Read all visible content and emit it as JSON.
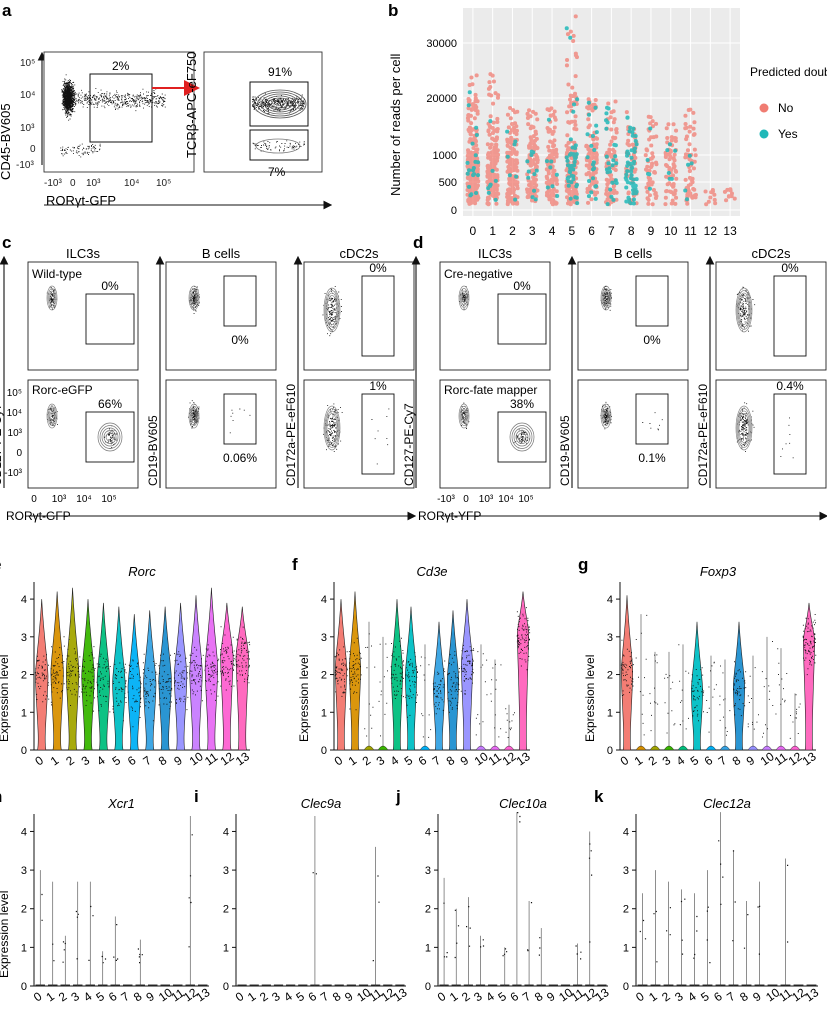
{
  "panels": {
    "a": {
      "letter": "a",
      "left_plot": {
        "xlabel": "RORγt-GFP",
        "ylabel": "CD45-BV605",
        "yticks": [
          "10^5",
          "10^4",
          "10^3",
          "0",
          "-10^3"
        ],
        "xticks": [
          "-10^3",
          "0",
          "10^3",
          "10^4",
          "10^5"
        ],
        "gate_pct": "2%"
      },
      "right_plot": {
        "ylabel": "TCRβ-APC-eF750",
        "gate_top_pct": "91%",
        "gate_bottom_pct": "7%"
      }
    },
    "b": {
      "letter": "b",
      "ylabel": "Number of reads per cell",
      "legend_title": "Predicted doublet",
      "legend_no": "No",
      "legend_yes": "Yes",
      "color_no": "#f07c72",
      "color_yes": "#20b8b8"
    },
    "c": {
      "letter": "c",
      "col_titles": [
        "ILC3s",
        "B cells",
        "cDC2s"
      ],
      "row_labels": [
        "Wild-type",
        "Rorc-eGFP"
      ],
      "ylabels": [
        "CD127-PE-Cy7",
        "CD19-BV605",
        "CD172a-PE-eF610"
      ],
      "xlabel": "RORγt-GFP",
      "yticks": [
        "10^5",
        "10^4",
        "10^3",
        "0",
        "-10^3"
      ],
      "xticks": [
        "0",
        "10^3",
        "10^4",
        "10^5"
      ],
      "pcts_top": [
        "0%",
        "0%",
        "0%"
      ],
      "pcts_bottom": [
        "66%",
        "0.06%",
        "1%"
      ]
    },
    "d": {
      "letter": "d",
      "col_titles": [
        "ILC3s",
        "B cells",
        "cDC2s"
      ],
      "row_labels": [
        "Cre-negative",
        "Rorc-fate mapper"
      ],
      "ylabels": [
        "CD127-PE-Cy7",
        "CD19-BV605",
        "CD172a-PE-eF610"
      ],
      "xlabel": "RORγt-YFP",
      "xticks": [
        "-10^3",
        "0",
        "10^3",
        "10^4",
        "10^5"
      ],
      "pcts_top": [
        "0%",
        "0%",
        "0%"
      ],
      "pcts_bottom": [
        "38%",
        "0.1%",
        "0.4%"
      ]
    },
    "efg": [
      {
        "letter": "e",
        "gene": "Rorc"
      },
      {
        "letter": "f",
        "gene": "Cd3e"
      },
      {
        "letter": "g",
        "gene": "Foxp3"
      }
    ],
    "hijk": [
      {
        "letter": "h",
        "gene": "Xcr1"
      },
      {
        "letter": "i",
        "gene": "Clec9a"
      },
      {
        "letter": "j",
        "gene": "Clec10a"
      },
      {
        "letter": "k",
        "gene": "Clec12a"
      }
    ],
    "violin_ylabel": "Expression level",
    "cluster_colors": [
      "#f2766d",
      "#d89000",
      "#a3a500",
      "#39b600",
      "#00bf7d",
      "#00bfc4",
      "#00b0f6",
      "#35a2e3",
      "#1f8fd0",
      "#9590ff",
      "#c77cff",
      "#e76bf3",
      "#fd61d1",
      "#ff62bc"
    ]
  },
  "chart_data": [
    {
      "type": "scatter",
      "panel": "b",
      "ylabel": "Number of reads per cell",
      "categories": [
        "0",
        "1",
        "2",
        "3",
        "4",
        "5",
        "6",
        "7",
        "8",
        "9",
        "10",
        "11",
        "12",
        "13"
      ],
      "ytick_labels": [
        "0",
        "500",
        "1000",
        "20000",
        "30000"
      ],
      "legend_title": "Predicted doublet",
      "series": [
        {
          "name": "No",
          "max_reads": [
            25000,
            25500,
            17000,
            16000,
            18000,
            35000,
            20000,
            19000,
            16000,
            14000,
            15000,
            21000,
            400,
            380
          ]
        },
        {
          "name": "Yes",
          "max_reads": [
            14000,
            15000,
            14000,
            16000,
            16000,
            30000,
            19000,
            18500,
            20500,
            9000,
            12000,
            13000,
            0,
            0
          ]
        }
      ]
    },
    {
      "type": "violin",
      "panel": "e",
      "title": "Rorc",
      "ylabel": "Expression level",
      "categories": [
        "0",
        "1",
        "2",
        "3",
        "4",
        "5",
        "6",
        "7",
        "8",
        "9",
        "10",
        "11",
        "12",
        "13"
      ],
      "ylim": [
        0,
        4.4
      ],
      "median": [
        1.9,
        2.0,
        2.0,
        1.9,
        1.8,
        1.7,
        1.6,
        1.7,
        1.8,
        1.9,
        2.0,
        2.1,
        2.4,
        2.4
      ],
      "max": [
        4.0,
        4.2,
        4.3,
        4.0,
        3.9,
        3.8,
        3.6,
        3.7,
        3.8,
        3.9,
        4.1,
        4.3,
        3.9,
        3.8
      ]
    },
    {
      "type": "violin",
      "panel": "f",
      "title": "Cd3e",
      "ylabel": "Expression level",
      "categories": [
        "0",
        "1",
        "2",
        "3",
        "4",
        "5",
        "6",
        "7",
        "8",
        "9",
        "10",
        "11",
        "12",
        "13"
      ],
      "ylim": [
        0,
        4.4
      ],
      "median": [
        2.1,
        2.1,
        0,
        0,
        2.0,
        1.9,
        0,
        1.6,
        1.8,
        2.2,
        0,
        0,
        0,
        3.0
      ],
      "max": [
        4.0,
        4.2,
        3.4,
        3.0,
        4.0,
        3.8,
        2.8,
        3.4,
        3.7,
        4.0,
        2.8,
        2.4,
        1.2,
        4.2
      ]
    },
    {
      "type": "violin",
      "panel": "g",
      "title": "Foxp3",
      "ylabel": "Expression level",
      "categories": [
        "0",
        "1",
        "2",
        "3",
        "4",
        "5",
        "6",
        "7",
        "8",
        "9",
        "10",
        "11",
        "12",
        "13"
      ],
      "ylim": [
        0,
        4.4
      ],
      "median": [
        2.0,
        0,
        0,
        0,
        0,
        1.5,
        0,
        0,
        1.6,
        0,
        0,
        0,
        0,
        2.8
      ],
      "max": [
        4.1,
        3.6,
        2.6,
        2.6,
        2.8,
        3.4,
        2.5,
        2.4,
        3.4,
        2.5,
        3.0,
        2.7,
        1.5,
        3.9
      ]
    },
    {
      "type": "violin",
      "panel": "h",
      "title": "Xcr1",
      "ylabel": "Expression level",
      "categories": [
        "0",
        "1",
        "2",
        "3",
        "4",
        "5",
        "6",
        "7",
        "8",
        "9",
        "10",
        "11",
        "12",
        "13"
      ],
      "ylim": [
        0,
        4.4
      ],
      "max": [
        3.0,
        2.7,
        1.3,
        2.7,
        2.7,
        0.9,
        1.8,
        0,
        1.2,
        0,
        0,
        0,
        4.4,
        0
      ]
    },
    {
      "type": "violin",
      "panel": "i",
      "title": "Clec9a",
      "ylabel": "Expression level",
      "categories": [
        "0",
        "1",
        "2",
        "3",
        "4",
        "5",
        "6",
        "7",
        "8",
        "9",
        "10",
        "11",
        "12",
        "13"
      ],
      "ylim": [
        0,
        4.4
      ],
      "max": [
        0,
        0,
        0,
        0,
        0,
        0,
        4.4,
        0,
        0,
        0,
        0,
        3.6,
        0,
        0
      ]
    },
    {
      "type": "violin",
      "panel": "j",
      "title": "Clec10a",
      "ylabel": "Expression level",
      "categories": [
        "0",
        "1",
        "2",
        "3",
        "4",
        "5",
        "6",
        "7",
        "8",
        "9",
        "10",
        "11",
        "12",
        "13"
      ],
      "ylim": [
        0,
        4.4
      ],
      "max": [
        2.8,
        2.0,
        2.3,
        1.3,
        0,
        1.0,
        4.5,
        2.2,
        1.5,
        0,
        0,
        1.1,
        4.0,
        0
      ]
    },
    {
      "type": "violin",
      "panel": "k",
      "title": "Clec12a",
      "ylabel": "Expression level",
      "categories": [
        "0",
        "1",
        "2",
        "3",
        "4",
        "5",
        "6",
        "7",
        "8",
        "9",
        "10",
        "11",
        "12",
        "13"
      ],
      "ylim": [
        0,
        4.4
      ],
      "max": [
        2.4,
        3.0,
        2.7,
        2.5,
        2.4,
        3.0,
        4.5,
        3.5,
        2.2,
        2.7,
        0,
        3.3,
        0,
        0
      ]
    }
  ]
}
